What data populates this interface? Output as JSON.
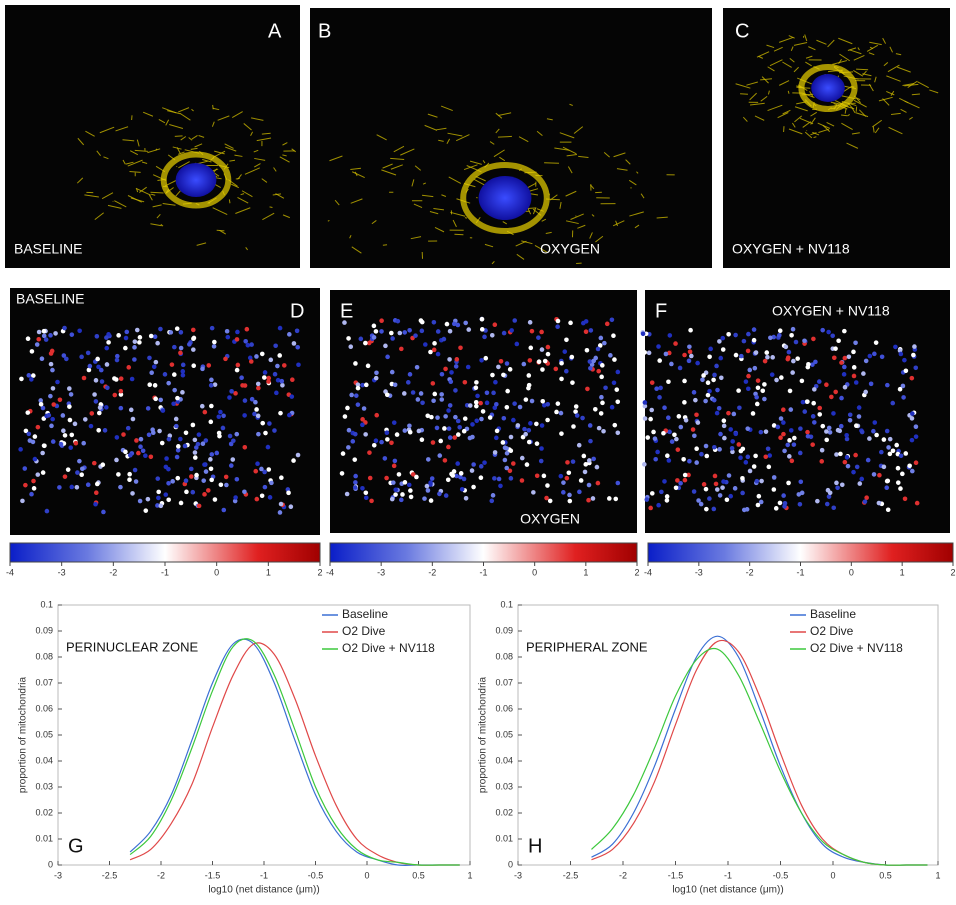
{
  "panels": [
    {
      "letter": "A",
      "label": "BASELINE"
    },
    {
      "letter": "B",
      "label": "OXYGEN"
    },
    {
      "letter": "C",
      "label": "OXYGEN + NV118"
    },
    {
      "letter": "D",
      "label": "BASELINE"
    },
    {
      "letter": "E",
      "label": "OXYGEN"
    },
    {
      "letter": "F",
      "label": "OXYGEN + NV118"
    }
  ],
  "colorbars": [
    {
      "lim": [
        -4,
        2
      ],
      "ticks": [
        -4,
        -3,
        -2,
        -1,
        0,
        1,
        2
      ]
    },
    {
      "lim": [
        -4,
        2
      ],
      "ticks": [
        -4,
        -3,
        -2,
        -1,
        0,
        1,
        2
      ]
    },
    {
      "lim": [
        -4,
        2
      ],
      "ticks": [
        -4,
        -3,
        -2,
        -1,
        0,
        1,
        2
      ]
    }
  ],
  "chart_data": [
    {
      "type": "line",
      "panel_label": "G",
      "annotation": "PERINUCLEAR ZONE",
      "xlabel": "log10 (net distance (μm))",
      "ylabel": "proportion of mitochondria",
      "xlim": [
        -3,
        1
      ],
      "xticks": [
        -3,
        -2.5,
        -2,
        -1.5,
        -1,
        -0.5,
        0,
        0.5,
        1
      ],
      "ylim": [
        0,
        0.1
      ],
      "yticks": [
        0,
        0.01,
        0.02,
        0.03,
        0.04,
        0.05,
        0.06,
        0.07,
        0.08,
        0.09,
        0.1
      ],
      "legend": "upper right",
      "x": [
        -2.3,
        -2.1,
        -1.9,
        -1.7,
        -1.5,
        -1.3,
        -1.1,
        -0.9,
        -0.7,
        -0.5,
        -0.3,
        -0.1,
        0.1,
        0.3,
        0.5,
        0.7,
        0.9
      ],
      "series": [
        {
          "name": "Baseline",
          "color": "#3b6fd4",
          "values": [
            0.005,
            0.013,
            0.027,
            0.048,
            0.07,
            0.085,
            0.085,
            0.07,
            0.048,
            0.027,
            0.013,
            0.005,
            0.002,
            0,
            0,
            0,
            0
          ]
        },
        {
          "name": "O2 Dive",
          "color": "#e04848",
          "values": [
            0.002,
            0.006,
            0.016,
            0.031,
            0.053,
            0.073,
            0.085,
            0.081,
            0.064,
            0.042,
            0.023,
            0.01,
            0.004,
            0.001,
            0,
            0,
            0
          ]
        },
        {
          "name": "O2 Dive + NV118",
          "color": "#3cc83c",
          "values": [
            0.004,
            0.011,
            0.025,
            0.045,
            0.067,
            0.084,
            0.086,
            0.073,
            0.052,
            0.03,
            0.015,
            0.006,
            0.002,
            0.001,
            0,
            0,
            0
          ]
        }
      ]
    },
    {
      "type": "line",
      "panel_label": "H",
      "annotation": "PERIPHERAL ZONE",
      "xlabel": "log10 (net distance (μm))",
      "ylabel": "proportion of mitochondria",
      "xlim": [
        -3,
        1
      ],
      "xticks": [
        -3,
        -2.5,
        -2,
        -1.5,
        -1,
        -0.5,
        0,
        0.5,
        1
      ],
      "ylim": [
        0,
        0.1
      ],
      "yticks": [
        0,
        0.01,
        0.02,
        0.03,
        0.04,
        0.05,
        0.06,
        0.07,
        0.08,
        0.09,
        0.1
      ],
      "legend": "upper right",
      "x": [
        -2.3,
        -2.1,
        -1.9,
        -1.7,
        -1.5,
        -1.3,
        -1.1,
        -0.9,
        -0.7,
        -0.5,
        -0.3,
        -0.1,
        0.1,
        0.3,
        0.5,
        0.7,
        0.9
      ],
      "series": [
        {
          "name": "Baseline",
          "color": "#3b6fd4",
          "values": [
            0.003,
            0.008,
            0.02,
            0.038,
            0.06,
            0.08,
            0.088,
            0.08,
            0.06,
            0.038,
            0.02,
            0.008,
            0.003,
            0.001,
            0,
            0,
            0
          ]
        },
        {
          "name": "O2 Dive",
          "color": "#e04848",
          "values": [
            0.002,
            0.006,
            0.016,
            0.032,
            0.054,
            0.075,
            0.086,
            0.082,
            0.065,
            0.043,
            0.023,
            0.01,
            0.004,
            0.001,
            0,
            0,
            0
          ]
        },
        {
          "name": "O2 Dive + NV118",
          "color": "#3cc83c",
          "values": [
            0.006,
            0.014,
            0.027,
            0.045,
            0.065,
            0.079,
            0.083,
            0.073,
            0.055,
            0.036,
            0.02,
            0.009,
            0.004,
            0.001,
            0,
            0,
            0
          ]
        }
      ]
    }
  ]
}
